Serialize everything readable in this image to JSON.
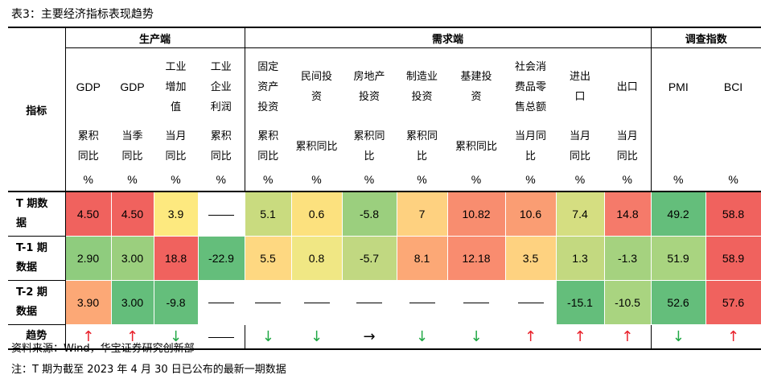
{
  "title": "表3：主要经济指标表现趋势",
  "corner_label": "指标",
  "groups": [
    "生产端",
    "需求端",
    "调查指数"
  ],
  "columns": [
    {
      "name": "GDP",
      "type": [
        "累积",
        "同比"
      ],
      "unit": "%"
    },
    {
      "name": "GDP",
      "type": [
        "当季",
        "同比"
      ],
      "unit": "%"
    },
    {
      "name": [
        "工业",
        "增加",
        "值"
      ],
      "type": [
        "当月",
        "同比"
      ],
      "unit": "%"
    },
    {
      "name": [
        "工业",
        "企业",
        "利润"
      ],
      "type": [
        "累积",
        "同比"
      ],
      "unit": "%"
    },
    {
      "name": [
        "固定",
        "资产",
        "投资"
      ],
      "type": [
        "累积",
        "同比"
      ],
      "unit": "%"
    },
    {
      "name": [
        "民间投",
        "资"
      ],
      "type": [
        "累积同比"
      ],
      "unit": "%"
    },
    {
      "name": [
        "房地产",
        "投资"
      ],
      "type": [
        "累积同",
        "比"
      ],
      "unit": "%"
    },
    {
      "name": [
        "制造业",
        "投资"
      ],
      "type": [
        "累积同",
        "比"
      ],
      "unit": "%"
    },
    {
      "name": [
        "基建投",
        "资"
      ],
      "type": [
        "累积同比"
      ],
      "unit": "%"
    },
    {
      "name": [
        "社会消",
        "费品零",
        "售总额"
      ],
      "type": [
        "当月同",
        "比"
      ],
      "unit": "%"
    },
    {
      "name": [
        "进出",
        "口"
      ],
      "type": [
        "当月",
        "同比"
      ],
      "unit": "%"
    },
    {
      "name": [
        "出口"
      ],
      "type": [
        "当月",
        "同比"
      ],
      "unit": "%"
    },
    {
      "name": [
        "PMI"
      ],
      "type": [],
      "unit": "%"
    },
    {
      "name": [
        "BCI"
      ],
      "type": [],
      "unit": "%"
    }
  ],
  "rows": [
    {
      "label": [
        "T 期数",
        "据"
      ],
      "values": [
        "4.50",
        "4.50",
        "3.9",
        "——",
        "5.1",
        "0.6",
        "-5.8",
        "7",
        "10.82",
        "10.6",
        "7.4",
        "14.8",
        "49.2",
        "58.8"
      ],
      "colors": [
        "#f0625e",
        "#f0625e",
        "#fde97f",
        "#ffffff",
        "#c9db7f",
        "#fce17e",
        "#9bcf7e",
        "#fed180",
        "#f88d6f",
        "#fa9d73",
        "#d5de81",
        "#f57a6a",
        "#64be7b",
        "#f0625e"
      ]
    },
    {
      "label": [
        "T-1 期",
        "数据"
      ],
      "values": [
        "2.90",
        "3.00",
        "18.8",
        "-22.9",
        "5.5",
        "0.8",
        "-5.7",
        "8.1",
        "12.18",
        "3.5",
        "1.3",
        "-1.3",
        "51.9",
        "58.9"
      ],
      "colors": [
        "#8fcc7e",
        "#9bcf7e",
        "#f0625e",
        "#64be7b",
        "#fed881",
        "#f0e784",
        "#c1d881",
        "#fca876",
        "#f98c6f",
        "#fed280",
        "#c3d980",
        "#a5d27f",
        "#a9d480",
        "#f0625e"
      ]
    },
    {
      "label": [
        "T-2 期",
        "数据"
      ],
      "values": [
        "3.90",
        "3.00",
        "-9.8",
        "——",
        "——",
        "——",
        "——",
        "——",
        "——",
        "——",
        "-15.1",
        "-10.5",
        "52.6",
        "57.6"
      ],
      "colors": [
        "#fca876",
        "#64be7b",
        "#64be7b",
        "#ffffff",
        "#ffffff",
        "#ffffff",
        "#ffffff",
        "#ffffff",
        "#ffffff",
        "#ffffff",
        "#64be7b",
        "#a9d480",
        "#64be7b",
        "#f0625e"
      ]
    }
  ],
  "trend": {
    "label": "趋势",
    "arrows": [
      "↑",
      "↑",
      "↓",
      "——",
      "↓",
      "↓",
      "→",
      "↓",
      "↓",
      "↑",
      "↑",
      "↑",
      "↓",
      "↑"
    ]
  },
  "source": "资料来源：Wind，华宝证券研究创新部",
  "note": "注：T 期为截至 2023 年 4 月 30 日已公布的最新一期数据"
}
